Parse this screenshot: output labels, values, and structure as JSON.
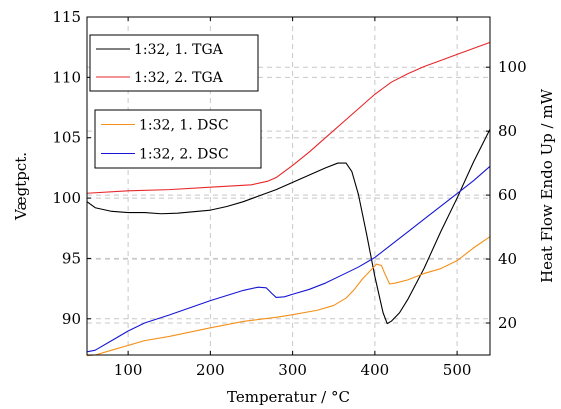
{
  "chart_data": {
    "type": "line",
    "xlabel": "Temperatur  /  °C",
    "ylabel_left": "Vægtpct.",
    "ylabel_right": "Heat Flow Endo Up  /  mW",
    "xlim": [
      50,
      540
    ],
    "ylim_left": [
      87,
      115
    ],
    "ylim_right": [
      10,
      115.7
    ],
    "x_ticks": [
      100,
      200,
      300,
      400,
      500
    ],
    "y_ticks_left": [
      90,
      95,
      100,
      105,
      110,
      115
    ],
    "y_ticks_right": [
      20,
      40,
      60,
      80,
      100
    ],
    "grid": true,
    "legends": [
      {
        "position": "upper-left",
        "entries": [
          0,
          1
        ]
      },
      {
        "position": "middle-left",
        "entries": [
          2,
          3
        ]
      }
    ],
    "series": [
      {
        "name": "1:32, 1. TGA",
        "axis": "left",
        "color": "#000000",
        "points": [
          [
            50,
            99.7
          ],
          [
            60,
            99.2
          ],
          [
            80,
            98.9
          ],
          [
            100,
            98.8
          ],
          [
            120,
            98.8
          ],
          [
            140,
            98.7
          ],
          [
            160,
            98.75
          ],
          [
            200,
            99.0
          ],
          [
            220,
            99.3
          ],
          [
            240,
            99.7
          ],
          [
            260,
            100.2
          ],
          [
            280,
            100.7
          ],
          [
            300,
            101.3
          ],
          [
            320,
            101.9
          ],
          [
            340,
            102.5
          ],
          [
            355,
            102.9
          ],
          [
            365,
            102.9
          ],
          [
            372,
            102.2
          ],
          [
            380,
            100.3
          ],
          [
            390,
            97.0
          ],
          [
            400,
            93.5
          ],
          [
            410,
            90.5
          ],
          [
            415,
            89.6
          ],
          [
            420,
            89.8
          ],
          [
            430,
            90.5
          ],
          [
            440,
            91.6
          ],
          [
            460,
            94.2
          ],
          [
            480,
            97.2
          ],
          [
            500,
            100.0
          ],
          [
            520,
            103.0
          ],
          [
            540,
            105.7
          ]
        ]
      },
      {
        "name": "1:32, 2. TGA",
        "axis": "left",
        "color": "#e8262a",
        "points": [
          [
            50,
            100.4
          ],
          [
            100,
            100.6
          ],
          [
            150,
            100.7
          ],
          [
            200,
            100.9
          ],
          [
            250,
            101.1
          ],
          [
            270,
            101.4
          ],
          [
            280,
            101.7
          ],
          [
            300,
            102.7
          ],
          [
            320,
            103.8
          ],
          [
            340,
            105.0
          ],
          [
            360,
            106.2
          ],
          [
            380,
            107.4
          ],
          [
            400,
            108.6
          ],
          [
            420,
            109.6
          ],
          [
            440,
            110.3
          ],
          [
            460,
            110.9
          ],
          [
            480,
            111.4
          ],
          [
            500,
            111.9
          ],
          [
            520,
            112.4
          ],
          [
            540,
            112.9
          ]
        ]
      },
      {
        "name": "1:32, 1. DSC",
        "axis": "right",
        "color": "#f39019",
        "points": [
          [
            50,
            9.8
          ],
          [
            60,
            10.0
          ],
          [
            80,
            11.5
          ],
          [
            100,
            13.0
          ],
          [
            120,
            14.5
          ],
          [
            150,
            15.8
          ],
          [
            200,
            18.5
          ],
          [
            240,
            20.5
          ],
          [
            280,
            21.8
          ],
          [
            300,
            22.6
          ],
          [
            330,
            24.0
          ],
          [
            350,
            25.5
          ],
          [
            365,
            27.8
          ],
          [
            375,
            30.5
          ],
          [
            385,
            33.8
          ],
          [
            395,
            36.5
          ],
          [
            402,
            38.4
          ],
          [
            408,
            38.0
          ],
          [
            412,
            35.5
          ],
          [
            418,
            32.2
          ],
          [
            425,
            32.5
          ],
          [
            440,
            33.5
          ],
          [
            460,
            35.5
          ],
          [
            480,
            37.0
          ],
          [
            500,
            39.5
          ],
          [
            520,
            43.5
          ],
          [
            540,
            47.0
          ]
        ]
      },
      {
        "name": "1:32, 2. DSC",
        "axis": "right",
        "color": "#1616d4",
        "points": [
          [
            50,
            11.0
          ],
          [
            60,
            11.5
          ],
          [
            80,
            14.5
          ],
          [
            100,
            17.5
          ],
          [
            120,
            20.0
          ],
          [
            150,
            22.5
          ],
          [
            200,
            27.0
          ],
          [
            240,
            30.2
          ],
          [
            258,
            31.2
          ],
          [
            268,
            31.0
          ],
          [
            275,
            29.2
          ],
          [
            280,
            28.0
          ],
          [
            290,
            28.2
          ],
          [
            300,
            29.0
          ],
          [
            320,
            30.5
          ],
          [
            340,
            32.5
          ],
          [
            360,
            35.0
          ],
          [
            380,
            37.5
          ],
          [
            400,
            40.5
          ],
          [
            420,
            44.5
          ],
          [
            440,
            48.5
          ],
          [
            460,
            52.5
          ],
          [
            480,
            56.5
          ],
          [
            500,
            60.5
          ],
          [
            520,
            64.5
          ],
          [
            540,
            69.0
          ]
        ]
      }
    ]
  }
}
